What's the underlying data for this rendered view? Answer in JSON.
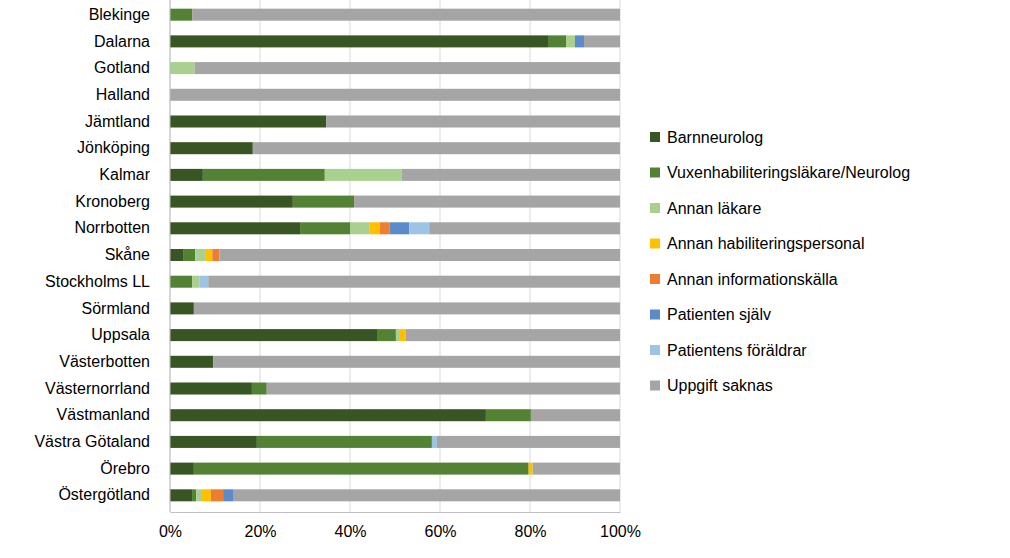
{
  "chart_data": {
    "type": "bar",
    "orientation": "horizontal",
    "stacked": true,
    "grid": true,
    "legend": "right",
    "categories": [
      "Blekinge",
      "Dalarna",
      "Gotland",
      "Halland",
      "Jämtland",
      "Jönköping",
      "Kalmar",
      "Kronoberg",
      "Norrbotten",
      "Skåne",
      "Stockholms LL",
      "Sörmland",
      "Uppsala",
      "Västerbotten",
      "Västernorrland",
      "Västmanland",
      "Västra Götaland",
      "Örebro",
      "Östergötland"
    ],
    "xlim": [
      0,
      100
    ],
    "xticks": [
      {
        "value": 0,
        "label": "0%"
      },
      {
        "value": 20,
        "label": "20%"
      },
      {
        "value": 40,
        "label": "40%"
      },
      {
        "value": 60,
        "label": "60%"
      },
      {
        "value": 80,
        "label": "80%"
      },
      {
        "value": 100,
        "label": "100%"
      }
    ],
    "series": [
      {
        "name": "Barnneurolog",
        "color": "#375623",
        "values": [
          0,
          84,
          0,
          0,
          34.7,
          18.4,
          7.3,
          27.3,
          28.9,
          2.9,
          0,
          5.3,
          46,
          9.6,
          18.2,
          70.2,
          19.3,
          5.3,
          4.9
        ]
      },
      {
        "name": "Vuxenhabiliteringsläkare/Neurolog",
        "color": "#548235",
        "values": [
          5,
          4,
          0,
          0,
          0,
          0,
          27.1,
          13.6,
          11.1,
          2.7,
          4.9,
          0,
          4.2,
          0,
          3.3,
          10,
          38.9,
          74.4,
          0.9
        ]
      },
      {
        "name": "Annan läkare",
        "color": "#A9D08E",
        "values": [
          0,
          2,
          5.5,
          0,
          0,
          0,
          17.1,
          0,
          4.4,
          2.2,
          1.6,
          0,
          0.9,
          0,
          0,
          0,
          0,
          0,
          1.1
        ]
      },
      {
        "name": "Annan habiliteringspersonal",
        "color": "#FFC000",
        "values": [
          0,
          0,
          0,
          0,
          0,
          0,
          0,
          0,
          2.2,
          1.6,
          0,
          0,
          1.3,
          0,
          0,
          0,
          0,
          0.9,
          2.2
        ]
      },
      {
        "name": "Annan informationskälla",
        "color": "#ED7D31",
        "values": [
          0,
          0,
          0,
          0,
          0,
          0,
          0,
          0,
          2.2,
          1.6,
          0,
          0,
          0,
          0,
          0,
          0,
          0,
          0,
          2.7
        ]
      },
      {
        "name": "Patienten själv",
        "color": "#5B8BC8",
        "values": [
          0,
          2,
          0,
          0,
          0,
          0,
          0,
          0,
          4.4,
          0,
          0,
          0,
          0,
          0,
          0,
          0,
          0,
          0,
          2.2
        ]
      },
      {
        "name": "Patientens föräldrar",
        "color": "#9DC3E6",
        "values": [
          0,
          0,
          0,
          0,
          0,
          0,
          0,
          0,
          4.4,
          0,
          2,
          0,
          0,
          0,
          0,
          0,
          1.1,
          0,
          0
        ]
      },
      {
        "name": "Uppgift saknas",
        "color": "#A5A5A5",
        "values": [
          95,
          8,
          94.5,
          100,
          65.3,
          81.6,
          48.5,
          59.1,
          42.4,
          89,
          91.5,
          94.7,
          47.6,
          90.4,
          78.5,
          19.8,
          40.7,
          19.4,
          86
        ]
      }
    ]
  }
}
